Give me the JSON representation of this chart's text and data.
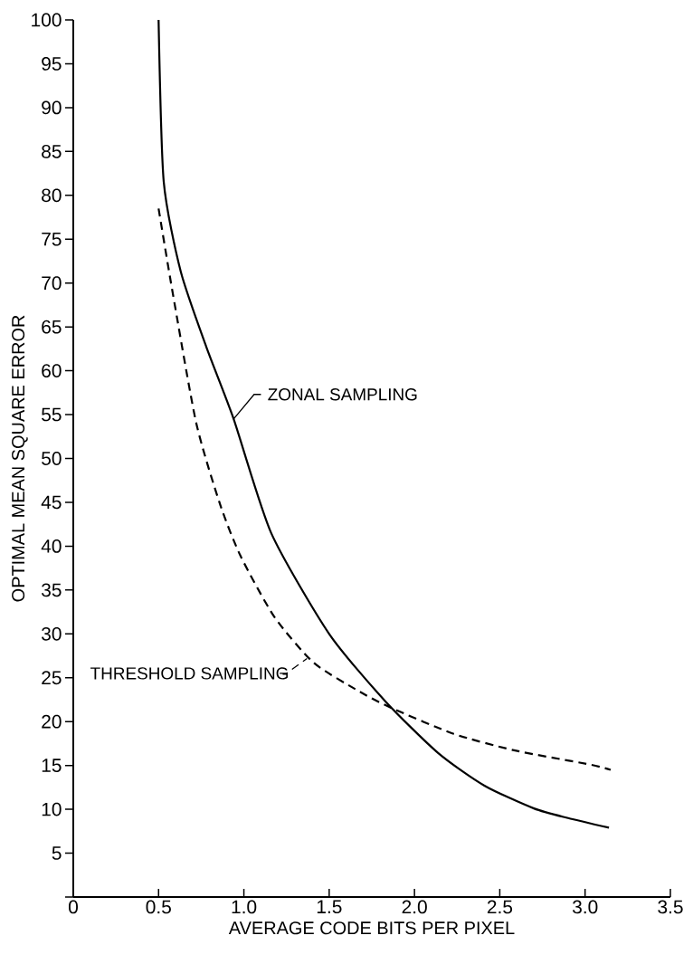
{
  "chart_data": {
    "type": "line",
    "xlabel": "AVERAGE CODE BITS PER PIXEL",
    "ylabel": "OPTIMAL MEAN SQUARE ERROR",
    "xlim": [
      0,
      3.5
    ],
    "ylim": [
      0,
      100
    ],
    "xticks": [
      0,
      0.5,
      {
        "value": 1,
        "label": "1.0"
      },
      1.5,
      {
        "value": 2,
        "label": "2.0"
      },
      2.5,
      {
        "value": 3,
        "label": "3.0"
      },
      3.5
    ],
    "yticks": [
      {
        "value": 0,
        "label": null
      },
      5,
      10,
      15,
      20,
      25,
      30,
      35,
      40,
      45,
      50,
      55,
      60,
      65,
      70,
      75,
      80,
      85,
      90,
      95,
      100
    ],
    "grid": false,
    "marker": "none",
    "series": [
      {
        "name": "ZONAL SAMPLING",
        "color": "#000000",
        "line_style": "solid",
        "x": [
          0.5,
          0.53,
          0.63,
          0.78,
          0.94,
          1.16,
          1.5,
          1.83,
          2.14,
          2.41,
          2.7,
          2.9,
          3.14
        ],
        "values": [
          100,
          81.6,
          71.3,
          62.7,
          54.5,
          41.5,
          30.0,
          22.3,
          16.4,
          12.7,
          10.1,
          9.0,
          7.9
        ]
      },
      {
        "name": "THRESHOLD SAMPLING",
        "color": "#000000",
        "line_style": "dashed",
        "x": [
          0.5,
          0.58,
          0.72,
          0.86,
          0.98,
          1.18,
          1.41,
          1.68,
          1.86,
          2.23,
          2.59,
          3.03,
          3.15
        ],
        "values": [
          78.5,
          69.2,
          54.1,
          44.8,
          38.9,
          31.9,
          26.7,
          23.4,
          21.6,
          18.6,
          16.7,
          15.1,
          14.5
        ]
      }
    ]
  }
}
